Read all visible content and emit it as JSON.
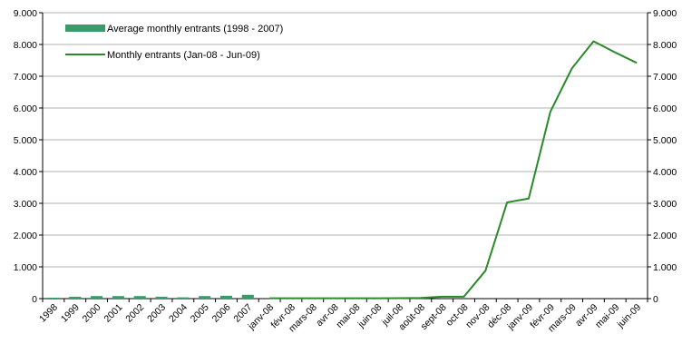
{
  "chart_data": {
    "type": "bar+line",
    "categories": [
      "1998",
      "1999",
      "2000",
      "2001",
      "2002",
      "2003",
      "2004",
      "2005",
      "2006",
      "2007",
      "janv-08",
      "févr-08",
      "mars-08",
      "avr-08",
      "mai-08",
      "juin-08",
      "juil-08",
      "août-08",
      "sept-08",
      "oct-08",
      "nov-08",
      "déc-08",
      "janv-09",
      "févr-09",
      "mars-09",
      "avr-09",
      "mai-09",
      "juin-09"
    ],
    "series": [
      {
        "name": "Average monthly entrants (1998 - 2007)",
        "kind": "bar",
        "color": "#3a9a6a",
        "values": [
          30,
          60,
          80,
          80,
          80,
          60,
          40,
          80,
          90,
          120,
          null,
          null,
          null,
          null,
          null,
          null,
          null,
          null,
          null,
          null,
          null,
          null,
          null,
          null,
          null,
          null,
          null,
          null
        ]
      },
      {
        "name": "Monthly entrants (Jan-08 - Jun-09)",
        "kind": "line",
        "color": "#2a8a2a",
        "values": [
          null,
          null,
          null,
          null,
          null,
          null,
          null,
          null,
          null,
          null,
          10,
          10,
          10,
          10,
          10,
          10,
          15,
          20,
          60,
          60,
          880,
          3030,
          3150,
          5880,
          7250,
          8100,
          7750,
          7420
        ]
      }
    ],
    "ylim": [
      0,
      9000
    ],
    "yticks": [
      "0",
      "1.000",
      "2.000",
      "3.000",
      "4.000",
      "5.000",
      "6.000",
      "7.000",
      "8.000",
      "9.000"
    ],
    "grid": true,
    "legend_position": "top-left"
  }
}
